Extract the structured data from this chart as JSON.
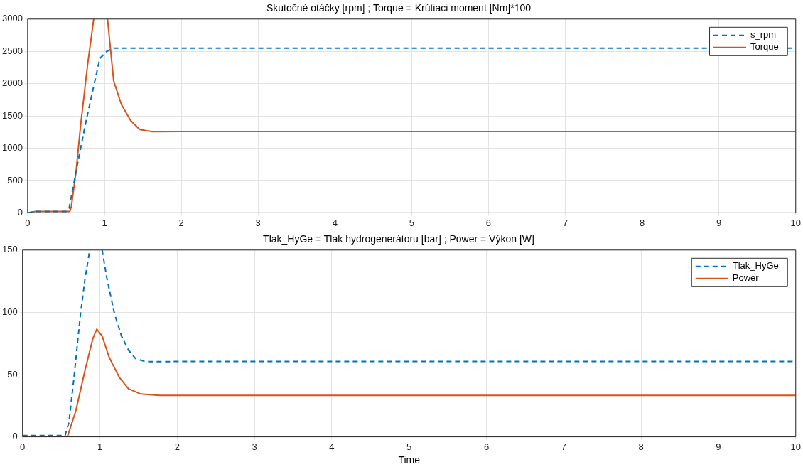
{
  "chart_data": [
    {
      "type": "line",
      "title": "Skutočné otáčky [rpm] ; Torque = Krútiaci moment [Nm]*100",
      "xlim": [
        0,
        10
      ],
      "xticks": [
        0,
        1,
        2,
        3,
        4,
        5,
        6,
        7,
        8,
        9,
        10
      ],
      "ylim": [
        0,
        3000
      ],
      "yticks": [
        0,
        500,
        1000,
        1500,
        2000,
        2500,
        3000
      ],
      "grid": true,
      "legend": "top right",
      "marker": "none",
      "series": [
        {
          "name": "s_rpm",
          "color": "#0072bd",
          "line_style": "dashed",
          "x": [
            0,
            0.1,
            0.5,
            0.54,
            0.63,
            0.75,
            0.88,
            0.94,
            1.03,
            1.12,
            2,
            4,
            6,
            8,
            10
          ],
          "values": [
            0,
            20,
            20,
            71,
            640,
            1360,
            2070,
            2390,
            2500,
            2550,
            2550,
            2550,
            2550,
            2550,
            2550
          ]
        },
        {
          "name": "Torque",
          "color": "#d95319",
          "line_style": "solid",
          "x": [
            0,
            0.1,
            0.55,
            0.57,
            0.63,
            0.69,
            0.78,
            0.86,
            0.95,
            1.04,
            1.12,
            1.22,
            1.34,
            1.46,
            1.62,
            2,
            4,
            6,
            8,
            10
          ],
          "values": [
            0,
            20,
            20,
            107,
            640,
            1360,
            2290,
            3000,
            null,
            3000,
            2040,
            1680,
            1430,
            1290,
            1257,
            1260,
            1260,
            1260,
            1260,
            1260
          ]
        }
      ]
    },
    {
      "type": "line",
      "title": "Tlak_HyGe = Tlak hydrogenerátoru [bar] ; Power = Výkon [W]",
      "xlabel": "Time",
      "xlim": [
        0,
        10
      ],
      "xticks": [
        0,
        1,
        2,
        3,
        4,
        5,
        6,
        7,
        8,
        9,
        10
      ],
      "ylim": [
        0,
        150
      ],
      "yticks": [
        0,
        50,
        100,
        150
      ],
      "grid": true,
      "legend": "top right",
      "marker": "none",
      "series": [
        {
          "name": "Tlak_HyGe",
          "color": "#0072bd",
          "line_style": "dashed",
          "x": [
            0,
            0.55,
            0.6,
            0.66,
            0.75,
            0.81,
            0.87,
            0.95,
            1.03,
            1.09,
            1.19,
            1.28,
            1.37,
            1.46,
            1.59,
            2,
            4,
            6,
            8,
            10
          ],
          "values": [
            1,
            1,
            11.6,
            44.5,
            98.7,
            127.7,
            150,
            null,
            150,
            127.7,
            98.7,
            81,
            69.7,
            63,
            60.4,
            60.5,
            60.5,
            60.5,
            60.5,
            60.5
          ]
        },
        {
          "name": "Power",
          "color": "#d95319",
          "line_style": "solid",
          "x": [
            0,
            0.58,
            0.69,
            0.81,
            0.91,
            0.96,
            1.03,
            1.12,
            1.25,
            1.37,
            1.53,
            1.77,
            2,
            4,
            6,
            8,
            10
          ],
          "values": [
            0,
            0,
            21,
            54,
            79,
            86.5,
            81,
            64,
            48,
            38.7,
            34.4,
            33.3,
            33.3,
            33.3,
            33.3,
            33.3,
            33.3
          ]
        }
      ]
    }
  ]
}
